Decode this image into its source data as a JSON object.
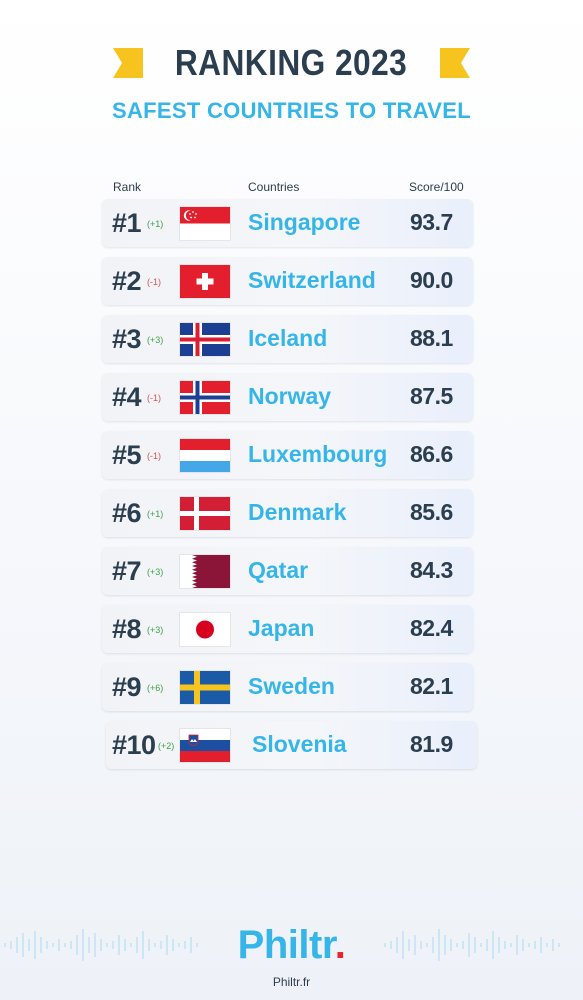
{
  "header": {
    "title": "RANKING 2023",
    "subtitle": "SAFEST COUNTRIES TO TRAVEL"
  },
  "columns": {
    "rank": "Rank",
    "countries": "Countries",
    "score": "Score/100"
  },
  "rows": [
    {
      "rank": "#1",
      "change": "(+1)",
      "trend": "up",
      "country": "Singapore",
      "score": "93.7",
      "flag": "singapore-flag-icon"
    },
    {
      "rank": "#2",
      "change": "(-1)",
      "trend": "down",
      "country": "Switzerland",
      "score": "90.0",
      "flag": "switzerland-flag-icon"
    },
    {
      "rank": "#3",
      "change": "(+3)",
      "trend": "up",
      "country": "Iceland",
      "score": "88.1",
      "flag": "iceland-flag-icon"
    },
    {
      "rank": "#4",
      "change": "(-1)",
      "trend": "down",
      "country": "Norway",
      "score": "87.5",
      "flag": "norway-flag-icon"
    },
    {
      "rank": "#5",
      "change": "(-1)",
      "trend": "down",
      "country": "Luxembourg",
      "score": "86.6",
      "flag": "luxembourg-flag-icon"
    },
    {
      "rank": "#6",
      "change": "(+1)",
      "trend": "up",
      "country": "Denmark",
      "score": "85.6",
      "flag": "denmark-flag-icon"
    },
    {
      "rank": "#7",
      "change": "(+3)",
      "trend": "up",
      "country": "Qatar",
      "score": "84.3",
      "flag": "qatar-flag-icon"
    },
    {
      "rank": "#8",
      "change": "(+3)",
      "trend": "up",
      "country": "Japan",
      "score": "82.4",
      "flag": "japan-flag-icon"
    },
    {
      "rank": "#9",
      "change": "(+6)",
      "trend": "up",
      "country": "Sweden",
      "score": "82.1",
      "flag": "sweden-flag-icon"
    },
    {
      "rank": "#10",
      "change": "(+2)",
      "trend": "up",
      "country": "Slovenia",
      "score": "81.9",
      "flag": "slovenia-flag-icon"
    }
  ],
  "footer": {
    "logo": "Philtr",
    "logo_dot": ".",
    "url": "Philtr.fr"
  },
  "colors": {
    "accent": "#35b5e8",
    "ribbon": "#f7c41f",
    "title": "#2b3e4f",
    "up": "#3fa24a",
    "down": "#d9534f"
  }
}
